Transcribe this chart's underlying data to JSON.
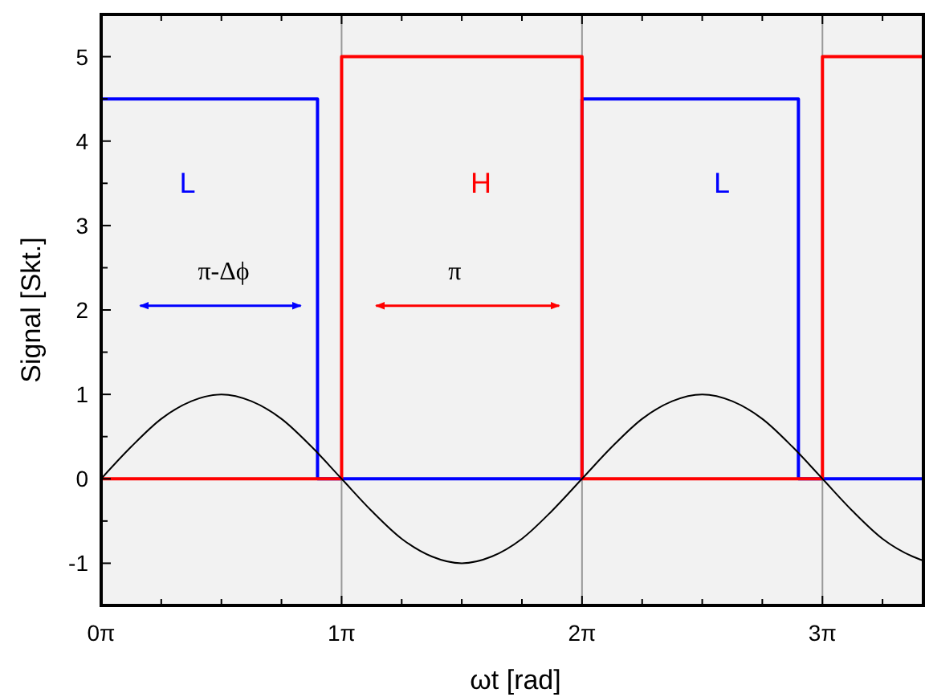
{
  "chart_data": {
    "type": "line",
    "xlabel": "ωt [rad]",
    "ylabel": "Signal [Skt.]",
    "xlim": [
      0,
      10.744
    ],
    "ylim": [
      -1.5,
      5.5
    ],
    "xticks": [
      {
        "value": 0,
        "label": "0π"
      },
      {
        "value": 0.785,
        "label": null
      },
      {
        "value": 1.571,
        "label": null
      },
      {
        "value": 2.356,
        "label": null
      },
      {
        "value": 3.1416,
        "label": "1π"
      },
      {
        "value": 3.927,
        "label": null
      },
      {
        "value": 4.712,
        "label": null
      },
      {
        "value": 5.498,
        "label": null
      },
      {
        "value": 6.2832,
        "label": "2π"
      },
      {
        "value": 7.069,
        "label": null
      },
      {
        "value": 7.854,
        "label": null
      },
      {
        "value": 8.639,
        "label": null
      },
      {
        "value": 9.4248,
        "label": "3π"
      },
      {
        "value": 10.21,
        "label": null
      }
    ],
    "yticks": [
      {
        "value": -1.5,
        "label": null
      },
      -1,
      {
        "value": -0.5,
        "label": null
      },
      0,
      {
        "value": 0.5,
        "label": null
      },
      1,
      {
        "value": 1.5,
        "label": null
      },
      2,
      {
        "value": 2.5,
        "label": null
      },
      3,
      {
        "value": 3.5,
        "label": null
      },
      4,
      {
        "value": 4.5,
        "label": null
      },
      5,
      {
        "value": 5.5,
        "label": null
      }
    ],
    "grid": false,
    "ref_lines": [
      {
        "axis": "x",
        "value": 3.1416,
        "color": "#999999"
      },
      {
        "axis": "x",
        "value": 6.2832,
        "color": "#999999"
      },
      {
        "axis": "x",
        "value": 9.4248,
        "color": "#999999"
      }
    ],
    "series": [
      {
        "type": "step",
        "color": "#0000ff",
        "x": [
          0,
          2.827,
          6.283,
          9.111,
          10.744
        ],
        "values": [
          4.5,
          0,
          4.5,
          0,
          0
        ]
      },
      {
        "type": "step",
        "color": "#ff0000",
        "x": [
          0,
          3.142,
          6.283,
          9.425,
          10.744
        ],
        "values": [
          0,
          5,
          0,
          5,
          5
        ]
      },
      {
        "color": "#000000",
        "x": [
          0,
          0.393,
          0.785,
          1.178,
          1.571,
          1.963,
          2.356,
          2.749,
          3.142,
          3.534,
          3.927,
          4.32,
          4.712,
          5.105,
          5.498,
          5.89,
          6.283,
          6.676,
          7.069,
          7.461,
          7.854,
          8.247,
          8.639,
          9.032,
          9.425,
          9.817,
          10.21,
          10.603,
          10.744
        ],
        "values": [
          0,
          0.38,
          0.71,
          0.92,
          1,
          0.92,
          0.71,
          0.38,
          0,
          -0.38,
          -0.71,
          -0.92,
          -1,
          -0.92,
          -0.71,
          -0.38,
          0,
          0.38,
          0.71,
          0.92,
          1,
          0.92,
          0.71,
          0.38,
          0,
          -0.38,
          -0.71,
          -0.92,
          -0.97
        ]
      }
    ],
    "annotations": [
      "L",
      "H",
      "L",
      "π-Δϕ",
      "π"
    ]
  }
}
